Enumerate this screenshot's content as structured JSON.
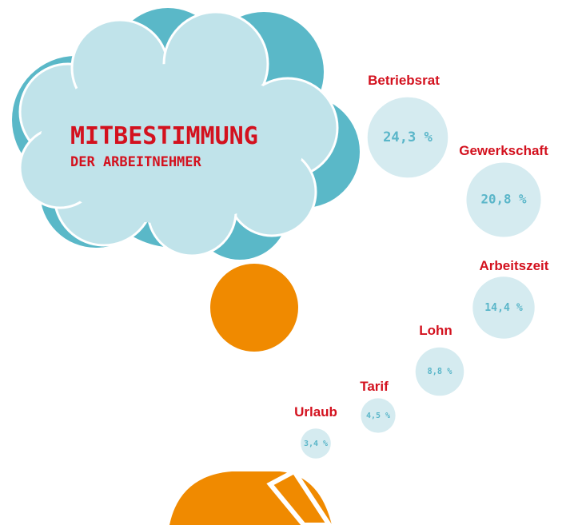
{
  "chart_data": {
    "type": "bubble",
    "title": "MITBESTIMMUNG",
    "subtitle": "DER ARBEITNEHMER",
    "categories": [
      "Betriebsrat",
      "Gewerkschaft",
      "Arbeitszeit",
      "Lohn",
      "Tarif",
      "Urlaub"
    ],
    "values": [
      24.3,
      20.8,
      14.4,
      8.8,
      4.5,
      3.4
    ],
    "value_labels": [
      "24,3 %",
      "20,8 %",
      "14,4 %",
      "8,8 %",
      "4,5 %",
      "3,4 %"
    ],
    "color": "#d5ebf0"
  }
}
